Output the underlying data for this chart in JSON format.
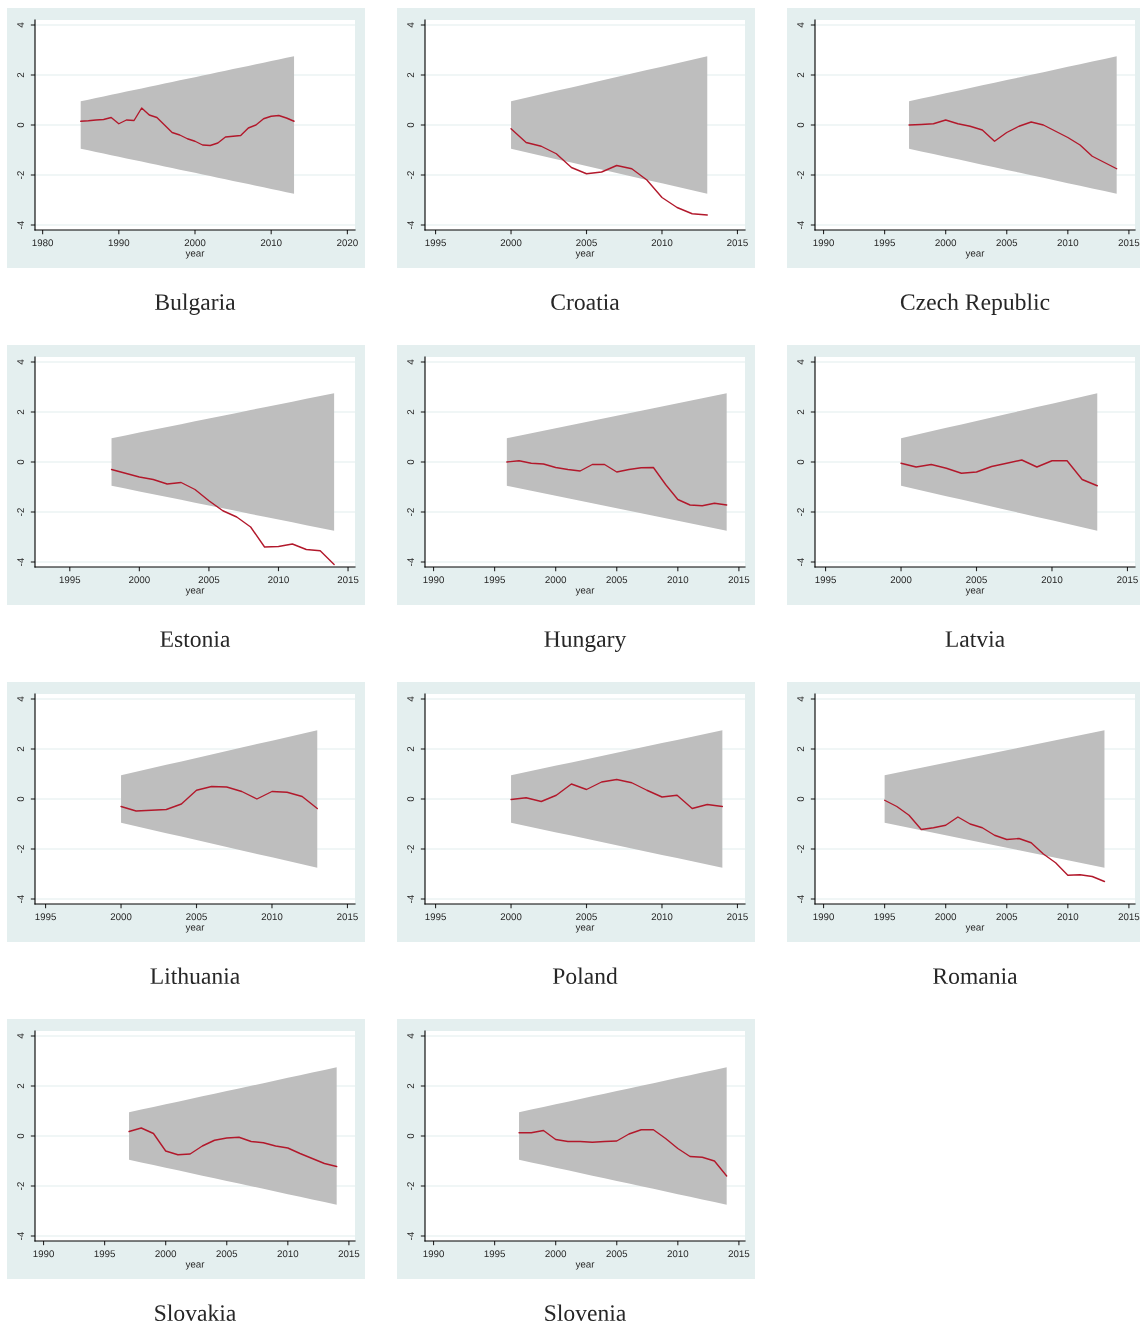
{
  "chart_data": [
    {
      "type": "line",
      "title": "Bulgaria",
      "xlabel": "year",
      "xlim": [
        1979,
        2021
      ],
      "xticks": [
        1980,
        1990,
        2000,
        2010,
        2020
      ],
      "ylim": [
        -4.2,
        4.2
      ],
      "yticks": [
        -4,
        -2,
        0,
        2,
        4
      ],
      "grid": "y",
      "series": [
        {
          "color": "#b2182b",
          "x": [
            1985,
            1986,
            1987,
            1988,
            1989,
            1990,
            1991,
            1992,
            1993,
            1994,
            1995,
            1996,
            1997,
            1998,
            1999,
            2000,
            2001,
            2002,
            2003,
            2004,
            2005,
            2006,
            2007,
            2008,
            2009,
            2010,
            2011,
            2012,
            2013
          ],
          "values": [
            0.15,
            0.17,
            0.2,
            0.22,
            0.3,
            0.05,
            0.2,
            0.18,
            0.68,
            0.4,
            0.3,
            0.0,
            -0.3,
            -0.4,
            -0.55,
            -0.65,
            -0.8,
            -0.82,
            -0.72,
            -0.48,
            -0.45,
            -0.42,
            -0.12,
            0.0,
            0.25,
            0.35,
            0.38,
            0.28,
            0.15
          ],
          "upper": [
            0.95,
            1.01,
            1.08,
            1.14,
            1.21,
            1.27,
            1.34,
            1.4,
            1.46,
            1.53,
            1.59,
            1.66,
            1.72,
            1.79,
            1.85,
            1.91,
            1.98,
            2.04,
            2.11,
            2.17,
            2.24,
            2.3,
            2.36,
            2.43,
            2.49,
            2.56,
            2.62,
            2.69,
            2.75
          ],
          "lower": [
            -0.95,
            -1.01,
            -1.08,
            -1.14,
            -1.21,
            -1.27,
            -1.34,
            -1.4,
            -1.46,
            -1.53,
            -1.59,
            -1.66,
            -1.72,
            -1.79,
            -1.85,
            -1.91,
            -1.98,
            -2.04,
            -2.11,
            -2.17,
            -2.24,
            -2.3,
            -2.36,
            -2.43,
            -2.49,
            -2.56,
            -2.62,
            -2.69,
            -2.75
          ]
        }
      ]
    },
    {
      "type": "line",
      "title": "Croatia",
      "xlabel": "year",
      "xlim": [
        1994.3,
        2015.5
      ],
      "xticks": [
        1995,
        2000,
        2005,
        2010,
        2015
      ],
      "ylim": [
        -4.2,
        4.2
      ],
      "yticks": [
        -4,
        -2,
        0,
        2,
        4
      ],
      "grid": "y",
      "series": [
        {
          "color": "#b2182b",
          "x": [
            2000,
            2001,
            2002,
            2003,
            2004,
            2005,
            2006,
            2007,
            2008,
            2009,
            2010,
            2011,
            2012,
            2013
          ],
          "values": [
            -0.15,
            -0.7,
            -0.85,
            -1.15,
            -1.7,
            -1.95,
            -1.88,
            -1.62,
            -1.75,
            -2.2,
            -2.9,
            -3.3,
            -3.55,
            -3.6
          ],
          "upper": [
            0.95,
            1.09,
            1.23,
            1.37,
            1.5,
            1.64,
            1.78,
            1.92,
            2.06,
            2.2,
            2.33,
            2.47,
            2.61,
            2.75
          ],
          "lower": [
            -0.95,
            -1.09,
            -1.23,
            -1.37,
            -1.5,
            -1.64,
            -1.78,
            -1.92,
            -2.06,
            -2.2,
            -2.33,
            -2.47,
            -2.61,
            -2.75
          ]
        }
      ]
    },
    {
      "type": "line",
      "title": "Czech Republic",
      "xlabel": "year",
      "xlim": [
        1989.3,
        2015.5
      ],
      "xticks": [
        1990,
        1995,
        2000,
        2005,
        2010,
        2015
      ],
      "ylim": [
        -4.2,
        4.2
      ],
      "yticks": [
        -4,
        -2,
        0,
        2,
        4
      ],
      "grid": "y",
      "series": [
        {
          "color": "#b2182b",
          "x": [
            1997,
            1998,
            1999,
            2000,
            2001,
            2002,
            2003,
            2004,
            2005,
            2006,
            2007,
            2008,
            2009,
            2010,
            2011,
            2012,
            2013,
            2014
          ],
          "values": [
            0.0,
            0.02,
            0.05,
            0.2,
            0.05,
            -0.05,
            -0.2,
            -0.65,
            -0.3,
            -0.05,
            0.12,
            0.0,
            -0.25,
            -0.5,
            -0.8,
            -1.25,
            -1.5,
            -1.75
          ],
          "upper": [
            0.95,
            1.06,
            1.16,
            1.27,
            1.37,
            1.48,
            1.59,
            1.69,
            1.8,
            1.9,
            2.01,
            2.11,
            2.22,
            2.33,
            2.43,
            2.54,
            2.64,
            2.75
          ],
          "lower": [
            -0.95,
            -1.06,
            -1.16,
            -1.27,
            -1.37,
            -1.48,
            -1.59,
            -1.69,
            -1.8,
            -1.9,
            -2.01,
            -2.11,
            -2.22,
            -2.33,
            -2.43,
            -2.54,
            -2.64,
            -2.75
          ]
        }
      ]
    },
    {
      "type": "line",
      "title": "Estonia",
      "xlabel": "year",
      "xlim": [
        1992.5,
        2015.5
      ],
      "xticks": [
        1995,
        2000,
        2005,
        2010,
        2015
      ],
      "ylim": [
        -4.2,
        4.2
      ],
      "yticks": [
        -4,
        -2,
        0,
        2,
        4
      ],
      "grid": "y",
      "series": [
        {
          "color": "#b2182b",
          "x": [
            1998,
            1999,
            2000,
            2001,
            2002,
            2003,
            2004,
            2005,
            2006,
            2007,
            2008,
            2009,
            2010,
            2011,
            2012,
            2013,
            2014
          ],
          "values": [
            -0.3,
            -0.45,
            -0.6,
            -0.7,
            -0.88,
            -0.82,
            -1.1,
            -1.55,
            -1.95,
            -2.2,
            -2.6,
            -3.4,
            -3.38,
            -3.28,
            -3.5,
            -3.55,
            -4.1
          ],
          "upper": [
            0.95,
            1.06,
            1.18,
            1.29,
            1.4,
            1.51,
            1.63,
            1.74,
            1.85,
            1.96,
            2.08,
            2.19,
            2.3,
            2.41,
            2.53,
            2.64,
            2.75
          ],
          "lower": [
            -0.95,
            -1.06,
            -1.18,
            -1.29,
            -1.4,
            -1.51,
            -1.63,
            -1.74,
            -1.85,
            -1.96,
            -2.08,
            -2.19,
            -2.3,
            -2.41,
            -2.53,
            -2.64,
            -2.75
          ]
        }
      ]
    },
    {
      "type": "line",
      "title": "Hungary",
      "xlabel": "year",
      "xlim": [
        1989.3,
        2015.5
      ],
      "xticks": [
        1990,
        1995,
        2000,
        2005,
        2010,
        2015
      ],
      "ylim": [
        -4.2,
        4.2
      ],
      "yticks": [
        -4,
        -2,
        0,
        2,
        4
      ],
      "grid": "y",
      "series": [
        {
          "color": "#b2182b",
          "x": [
            1996,
            1997,
            1998,
            1999,
            2000,
            2001,
            2002,
            2003,
            2004,
            2005,
            2006,
            2007,
            2008,
            2009,
            2010,
            2011,
            2012,
            2013,
            2014
          ],
          "values": [
            0.0,
            0.05,
            -0.05,
            -0.08,
            -0.22,
            -0.3,
            -0.36,
            -0.1,
            -0.1,
            -0.4,
            -0.3,
            -0.23,
            -0.22,
            -0.9,
            -1.5,
            -1.72,
            -1.75,
            -1.65,
            -1.72
          ],
          "upper": [
            0.95,
            1.05,
            1.15,
            1.25,
            1.35,
            1.45,
            1.55,
            1.65,
            1.75,
            1.85,
            1.95,
            2.05,
            2.15,
            2.25,
            2.35,
            2.45,
            2.55,
            2.65,
            2.75
          ],
          "lower": [
            -0.95,
            -1.05,
            -1.15,
            -1.25,
            -1.35,
            -1.45,
            -1.55,
            -1.65,
            -1.75,
            -1.85,
            -1.95,
            -2.05,
            -2.15,
            -2.25,
            -2.35,
            -2.45,
            -2.55,
            -2.65,
            -2.75
          ]
        }
      ]
    },
    {
      "type": "line",
      "title": "Latvia",
      "xlabel": "year",
      "xlim": [
        1994.3,
        2015.5
      ],
      "xticks": [
        1995,
        2000,
        2005,
        2010,
        2015
      ],
      "ylim": [
        -4.2,
        4.2
      ],
      "yticks": [
        -4,
        -2,
        0,
        2,
        4
      ],
      "grid": "y",
      "series": [
        {
          "color": "#b2182b",
          "x": [
            2000,
            2001,
            2002,
            2003,
            2004,
            2005,
            2006,
            2007,
            2008,
            2009,
            2010,
            2011,
            2012,
            2013
          ],
          "values": [
            -0.05,
            -0.2,
            -0.1,
            -0.25,
            -0.45,
            -0.4,
            -0.18,
            -0.05,
            0.08,
            -0.2,
            0.05,
            0.05,
            -0.7,
            -0.95
          ],
          "upper": [
            0.95,
            1.09,
            1.23,
            1.37,
            1.5,
            1.64,
            1.78,
            1.92,
            2.06,
            2.2,
            2.33,
            2.47,
            2.61,
            2.75
          ],
          "lower": [
            -0.95,
            -1.09,
            -1.23,
            -1.37,
            -1.5,
            -1.64,
            -1.78,
            -1.92,
            -2.06,
            -2.2,
            -2.33,
            -2.47,
            -2.61,
            -2.75
          ]
        }
      ]
    },
    {
      "type": "line",
      "title": "Lithuania",
      "xlabel": "year",
      "xlim": [
        1994.3,
        2015.5
      ],
      "xticks": [
        1995,
        2000,
        2005,
        2010,
        2015
      ],
      "ylim": [
        -4.2,
        4.2
      ],
      "yticks": [
        -4,
        -2,
        0,
        2,
        4
      ],
      "grid": "y",
      "series": [
        {
          "color": "#b2182b",
          "x": [
            2000,
            2001,
            2002,
            2003,
            2004,
            2005,
            2006,
            2007,
            2008,
            2009,
            2010,
            2011,
            2012,
            2013
          ],
          "values": [
            -0.3,
            -0.48,
            -0.45,
            -0.42,
            -0.2,
            0.35,
            0.5,
            0.48,
            0.3,
            0.0,
            0.3,
            0.27,
            0.1,
            -0.38
          ],
          "upper": [
            0.95,
            1.09,
            1.23,
            1.37,
            1.5,
            1.64,
            1.78,
            1.92,
            2.06,
            2.2,
            2.33,
            2.47,
            2.61,
            2.75
          ],
          "lower": [
            -0.95,
            -1.09,
            -1.23,
            -1.37,
            -1.5,
            -1.64,
            -1.78,
            -1.92,
            -2.06,
            -2.2,
            -2.33,
            -2.47,
            -2.61,
            -2.75
          ]
        }
      ]
    },
    {
      "type": "line",
      "title": "Poland",
      "xlabel": "year",
      "xlim": [
        1994.3,
        2015.5
      ],
      "xticks": [
        1995,
        2000,
        2005,
        2010,
        2015
      ],
      "ylim": [
        -4.2,
        4.2
      ],
      "yticks": [
        -4,
        -2,
        0,
        2,
        4
      ],
      "grid": "y",
      "series": [
        {
          "color": "#b2182b",
          "x": [
            2000,
            2001,
            2002,
            2003,
            2004,
            2005,
            2006,
            2007,
            2008,
            2009,
            2010,
            2011,
            2012,
            2013,
            2014
          ],
          "values": [
            -0.02,
            0.05,
            -0.1,
            0.15,
            0.6,
            0.38,
            0.68,
            0.78,
            0.65,
            0.35,
            0.08,
            0.15,
            -0.38,
            -0.22,
            -0.3
          ],
          "upper": [
            0.95,
            1.08,
            1.21,
            1.34,
            1.46,
            1.59,
            1.72,
            1.85,
            1.98,
            2.11,
            2.24,
            2.36,
            2.49,
            2.62,
            2.75
          ],
          "lower": [
            -0.95,
            -1.08,
            -1.21,
            -1.34,
            -1.46,
            -1.59,
            -1.72,
            -1.85,
            -1.98,
            -2.11,
            -2.24,
            -2.36,
            -2.49,
            -2.62,
            -2.75
          ]
        }
      ]
    },
    {
      "type": "line",
      "title": "Romania",
      "xlabel": "year",
      "xlim": [
        1989.3,
        2015.5
      ],
      "xticks": [
        1990,
        1995,
        2000,
        2005,
        2010,
        2015
      ],
      "ylim": [
        -4.2,
        4.2
      ],
      "yticks": [
        -4,
        -2,
        0,
        2,
        4
      ],
      "grid": "y",
      "series": [
        {
          "color": "#b2182b",
          "x": [
            1995,
            1996,
            1997,
            1998,
            1999,
            2000,
            2001,
            2002,
            2003,
            2004,
            2005,
            2006,
            2007,
            2008,
            2009,
            2010,
            2011,
            2012,
            2013
          ],
          "values": [
            -0.05,
            -0.3,
            -0.65,
            -1.22,
            -1.15,
            -1.05,
            -0.72,
            -1.0,
            -1.15,
            -1.45,
            -1.62,
            -1.58,
            -1.75,
            -2.2,
            -2.55,
            -3.05,
            -3.03,
            -3.1,
            -3.3
          ],
          "upper": [
            0.95,
            1.05,
            1.15,
            1.25,
            1.35,
            1.45,
            1.55,
            1.65,
            1.75,
            1.85,
            1.95,
            2.05,
            2.15,
            2.25,
            2.35,
            2.45,
            2.55,
            2.65,
            2.75
          ],
          "lower": [
            -0.95,
            -1.05,
            -1.15,
            -1.25,
            -1.35,
            -1.45,
            -1.55,
            -1.65,
            -1.75,
            -1.85,
            -1.95,
            -2.05,
            -2.15,
            -2.25,
            -2.35,
            -2.45,
            -2.55,
            -2.65,
            -2.75
          ]
        }
      ]
    },
    {
      "type": "line",
      "title": "Slovakia",
      "xlabel": "year",
      "xlim": [
        1989.3,
        2015.5
      ],
      "xticks": [
        1990,
        1995,
        2000,
        2005,
        2010,
        2015
      ],
      "ylim": [
        -4.2,
        4.2
      ],
      "yticks": [
        -4,
        -2,
        0,
        2,
        4
      ],
      "grid": "y",
      "series": [
        {
          "color": "#b2182b",
          "x": [
            1997,
            1998,
            1999,
            2000,
            2001,
            2002,
            2003,
            2004,
            2005,
            2006,
            2007,
            2008,
            2009,
            2010,
            2011,
            2012,
            2013,
            2014
          ],
          "values": [
            0.18,
            0.32,
            0.1,
            -0.6,
            -0.75,
            -0.72,
            -0.4,
            -0.17,
            -0.08,
            -0.05,
            -0.22,
            -0.27,
            -0.4,
            -0.48,
            -0.7,
            -0.9,
            -1.1,
            -1.22
          ],
          "upper": [
            0.95,
            1.06,
            1.16,
            1.27,
            1.37,
            1.48,
            1.59,
            1.69,
            1.8,
            1.9,
            2.01,
            2.11,
            2.22,
            2.33,
            2.43,
            2.54,
            2.64,
            2.75
          ],
          "lower": [
            -0.95,
            -1.06,
            -1.16,
            -1.27,
            -1.37,
            -1.48,
            -1.59,
            -1.69,
            -1.8,
            -1.9,
            -2.01,
            -2.11,
            -2.22,
            -2.33,
            -2.43,
            -2.54,
            -2.64,
            -2.75
          ]
        }
      ]
    },
    {
      "type": "line",
      "title": "Slovenia",
      "xlabel": "year",
      "xlim": [
        1989.3,
        2015.5
      ],
      "xticks": [
        1990,
        1995,
        2000,
        2005,
        2010,
        2015
      ],
      "ylim": [
        -4.2,
        4.2
      ],
      "yticks": [
        -4,
        -2,
        0,
        2,
        4
      ],
      "grid": "y",
      "series": [
        {
          "color": "#b2182b",
          "x": [
            1997,
            1998,
            1999,
            2000,
            2001,
            2002,
            2003,
            2004,
            2005,
            2006,
            2007,
            2008,
            2009,
            2010,
            2011,
            2012,
            2013,
            2014
          ],
          "values": [
            0.13,
            0.13,
            0.22,
            -0.14,
            -0.22,
            -0.22,
            -0.25,
            -0.22,
            -0.2,
            0.08,
            0.25,
            0.25,
            -0.1,
            -0.5,
            -0.82,
            -0.85,
            -1.0,
            -1.6
          ],
          "upper": [
            0.95,
            1.06,
            1.16,
            1.27,
            1.37,
            1.48,
            1.59,
            1.69,
            1.8,
            1.9,
            2.01,
            2.11,
            2.22,
            2.33,
            2.43,
            2.54,
            2.64,
            2.75
          ],
          "lower": [
            -0.95,
            -1.06,
            -1.16,
            -1.27,
            -1.37,
            -1.48,
            -1.59,
            -1.69,
            -1.8,
            -1.9,
            -2.01,
            -2.11,
            -2.22,
            -2.33,
            -2.43,
            -2.54,
            -2.64,
            -2.75
          ]
        }
      ]
    }
  ]
}
